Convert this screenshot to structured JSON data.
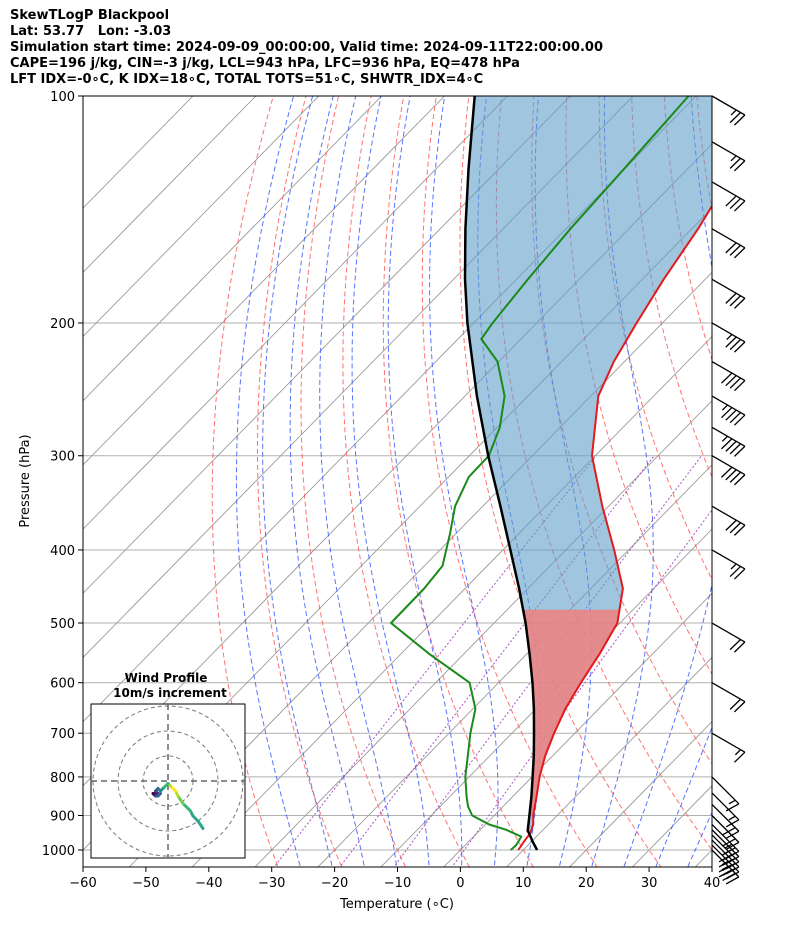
{
  "header": {
    "line1": "SkewTLogP Blackpool",
    "line2": "Lat: 53.77   Lon: -3.03",
    "line3": "Simulation start time: 2024-09-09_00:00:00, Valid time: 2024-09-11T22:00:00.00",
    "line4": "CAPE=196 j/kg, CIN=-3 j/kg, LCL=943 hPa, LFC=936 hPa, EQ=478 hPa",
    "line5": "LFT IDX=-0∘C, K IDX=18∘C, TOTAL TOTS=51∘C, SHWTR_IDX=4∘C"
  },
  "chart_data": {
    "type": "line",
    "subtype": "skew-T log-P",
    "xlabel": "Temperature (∘C)",
    "ylabel": "Pressure (hPa)",
    "xlim": [
      -60,
      40
    ],
    "ylim": [
      1040,
      100
    ],
    "y_scale": "log",
    "x_ticks": [
      -60,
      -50,
      -40,
      -30,
      -20,
      -10,
      0,
      10,
      20,
      30,
      40
    ],
    "x_tick_labels": [
      "−60",
      "−50",
      "−40",
      "−30",
      "−20",
      "−10",
      "0",
      "10",
      "20",
      "30",
      "40"
    ],
    "y_ticks": [
      1000,
      900,
      800,
      700,
      600,
      500,
      400,
      300,
      200,
      100
    ],
    "y_tick_labels": [
      "1000",
      "900",
      "800",
      "700",
      "600",
      "500",
      "400",
      "300",
      "200",
      "100"
    ],
    "grid": true,
    "colors": {
      "temperature": "#e31a1c",
      "dewpoint": "#1a8a1a",
      "parcel": "#000000",
      "cape_fill": "#5f9ec9",
      "cin_fill": "#f08080",
      "dry_adiabat": "#ff5a5a",
      "moist_adiabat": "#3b5bff",
      "mixing_ratio": "#a040c0"
    },
    "series": [
      {
        "points": [
          [
            1000,
            9.2
          ],
          [
            975,
            8.8
          ],
          [
            950,
            8.5
          ],
          [
            925,
            7.6
          ],
          [
            900,
            6.2
          ],
          [
            850,
            3.8
          ],
          [
            800,
            1.2
          ],
          [
            750,
            -1.2
          ],
          [
            700,
            -3.3
          ],
          [
            650,
            -5.3
          ],
          [
            600,
            -6.9
          ],
          [
            550,
            -8.4
          ],
          [
            500,
            -10.4
          ],
          [
            450,
            -14.9
          ],
          [
            400,
            -22.3
          ],
          [
            350,
            -31.0
          ],
          [
            300,
            -40.5
          ],
          [
            250,
            -48.8
          ],
          [
            225,
            -51.7
          ],
          [
            200,
            -54.1
          ],
          [
            175,
            -56.6
          ],
          [
            150,
            -59.0
          ],
          [
            125,
            -62.5
          ],
          [
            100,
            -66.5
          ]
        ]
      },
      {
        "points": [
          [
            1000,
            8.0
          ],
          [
            985,
            8.1
          ],
          [
            960,
            7.6
          ],
          [
            940,
            4.1
          ],
          [
            925,
            0.6
          ],
          [
            900,
            -3.5
          ],
          [
            875,
            -5.6
          ],
          [
            850,
            -7.3
          ],
          [
            800,
            -10.6
          ],
          [
            750,
            -13.5
          ],
          [
            700,
            -16.6
          ],
          [
            650,
            -19.6
          ],
          [
            600,
            -24.6
          ],
          [
            550,
            -35.4
          ],
          [
            500,
            -46.4
          ],
          [
            450,
            -46.5
          ],
          [
            420,
            -47.1
          ],
          [
            380,
            -51.0
          ],
          [
            350,
            -54.4
          ],
          [
            320,
            -56.8
          ],
          [
            300,
            -56.9
          ],
          [
            275,
            -59.6
          ],
          [
            250,
            -63.7
          ],
          [
            225,
            -70.2
          ],
          [
            210,
            -76.3
          ],
          [
            200,
            -77.0
          ],
          [
            175,
            -78.2
          ],
          [
            150,
            -79.3
          ],
          [
            125,
            -80.1
          ],
          [
            100,
            -81.2
          ]
        ]
      },
      {
        "points": [
          [
            1000,
            12.2
          ],
          [
            975,
            10.2
          ],
          [
            950,
            8.3
          ],
          [
            943,
            7.7
          ],
          [
            900,
            5.6
          ],
          [
            850,
            3.0
          ],
          [
            800,
            0.1
          ],
          [
            750,
            -3.0
          ],
          [
            700,
            -6.5
          ],
          [
            650,
            -10.3
          ],
          [
            600,
            -14.6
          ],
          [
            550,
            -19.5
          ],
          [
            500,
            -25.0
          ],
          [
            450,
            -31.4
          ],
          [
            400,
            -38.8
          ],
          [
            350,
            -47.2
          ],
          [
            300,
            -57.0
          ],
          [
            250,
            -68.1
          ],
          [
            200,
            -81.0
          ],
          [
            175,
            -88.2
          ],
          [
            150,
            -96.0
          ],
          [
            125,
            -104.8
          ],
          [
            100,
            -115.2
          ]
        ]
      }
    ],
    "annotations": {
      "cape_region": "parcel warmer than environment, 945–100 hPa",
      "cin_region": "shaded between parcel and environment near 500–900 hPa"
    },
    "wind_barbs": [
      {
        "p": 1000,
        "speed": 35,
        "dir": 315
      },
      {
        "p": 985,
        "speed": 35,
        "dir": 315
      },
      {
        "p": 970,
        "speed": 30,
        "dir": 315
      },
      {
        "p": 955,
        "speed": 30,
        "dir": 315
      },
      {
        "p": 940,
        "speed": 25,
        "dir": 315
      },
      {
        "p": 925,
        "speed": 25,
        "dir": 315
      },
      {
        "p": 900,
        "speed": 20,
        "dir": 315
      },
      {
        "p": 870,
        "speed": 20,
        "dir": 315
      },
      {
        "p": 840,
        "speed": 15,
        "dir": 315
      },
      {
        "p": 800,
        "speed": 15,
        "dir": 315
      },
      {
        "p": 700,
        "speed": 15,
        "dir": 300
      },
      {
        "p": 600,
        "speed": 20,
        "dir": 300
      },
      {
        "p": 500,
        "speed": 20,
        "dir": 300
      },
      {
        "p": 400,
        "speed": 25,
        "dir": 300
      },
      {
        "p": 350,
        "speed": 30,
        "dir": 300
      },
      {
        "p": 300,
        "speed": 40,
        "dir": 300
      },
      {
        "p": 275,
        "speed": 45,
        "dir": 300
      },
      {
        "p": 250,
        "speed": 45,
        "dir": 300
      },
      {
        "p": 225,
        "speed": 40,
        "dir": 300
      },
      {
        "p": 200,
        "speed": 35,
        "dir": 300
      },
      {
        "p": 175,
        "speed": 30,
        "dir": 300
      },
      {
        "p": 150,
        "speed": 30,
        "dir": 300
      },
      {
        "p": 130,
        "speed": 30,
        "dir": 300
      },
      {
        "p": 115,
        "speed": 25,
        "dir": 300
      },
      {
        "p": 100,
        "speed": 25,
        "dir": 300
      }
    ],
    "hodograph": {
      "title": "Wind Profile",
      "subtitle": "10m/s increment",
      "rings_ms": [
        10,
        20,
        30
      ],
      "points": [
        [
          14,
          -19
        ],
        [
          12,
          -16
        ],
        [
          10,
          -14
        ],
        [
          9,
          -12
        ],
        [
          8,
          -11
        ],
        [
          6,
          -9
        ],
        [
          4,
          -6
        ],
        [
          3,
          -4
        ],
        [
          2,
          -3
        ],
        [
          1,
          -2
        ],
        [
          0,
          -1
        ],
        [
          -2,
          -3
        ],
        [
          -3,
          -4
        ],
        [
          -4,
          -3
        ],
        [
          -5,
          -4
        ],
        [
          -4,
          -5
        ],
        [
          -6,
          -5
        ],
        [
          -5,
          -6
        ],
        [
          -4,
          -6
        ],
        [
          -3,
          -5
        ]
      ]
    }
  }
}
